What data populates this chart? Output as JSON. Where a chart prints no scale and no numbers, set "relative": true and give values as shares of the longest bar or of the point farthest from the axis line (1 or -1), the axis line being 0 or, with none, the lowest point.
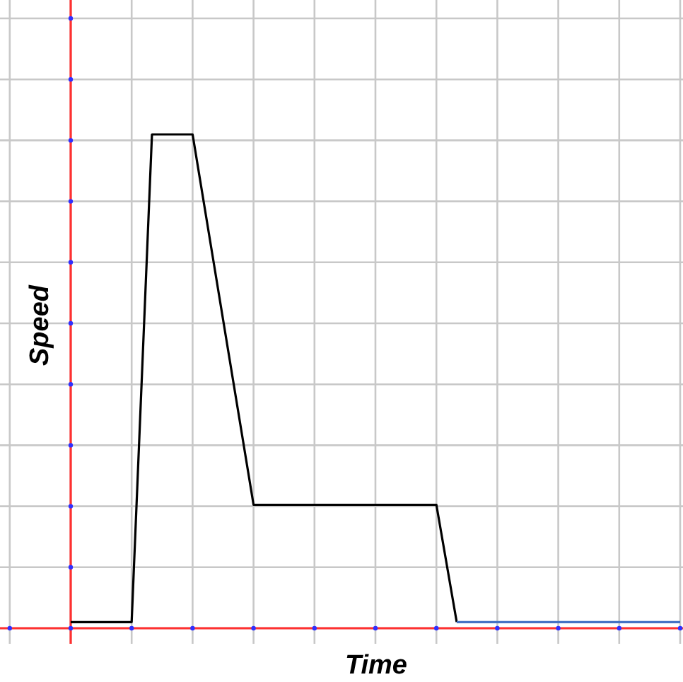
{
  "chart_data": {
    "type": "line",
    "xlabel": "Time",
    "ylabel": "Speed",
    "relative": true,
    "grid": true,
    "line_style": "solid",
    "categories": [
      null,
      null,
      null,
      null,
      null,
      null,
      null,
      null,
      null,
      null,
      null,
      null,
      null,
      null,
      null,
      null,
      null,
      null,
      null,
      null,
      null,
      null,
      null,
      null,
      null,
      null,
      null,
      null,
      null,
      null,
      null
    ],
    "series": [
      {
        "color": "#000000",
        "values": [
          0.0125,
          0.0125,
          0.0125,
          0.0125,
          1,
          1,
          1,
          0.75,
          0.5,
          0.25,
          0.25,
          0.25,
          0.25,
          0.25,
          0.25,
          0.25,
          0.25,
          0.25,
          0.25,
          0.0125,
          null,
          null,
          null,
          null,
          null,
          null,
          null,
          null,
          null,
          null,
          null
        ]
      },
      {
        "color": "#4472c4",
        "values": [
          null,
          null,
          null,
          null,
          null,
          null,
          null,
          null,
          null,
          null,
          null,
          null,
          null,
          null,
          null,
          null,
          null,
          null,
          null,
          0.0125,
          0.0125,
          0.0125,
          0.0125,
          0.0125,
          0.0125,
          0.0125,
          0.0125,
          0.0125,
          0.0125,
          0.0125,
          0.0125
        ]
      }
    ]
  }
}
